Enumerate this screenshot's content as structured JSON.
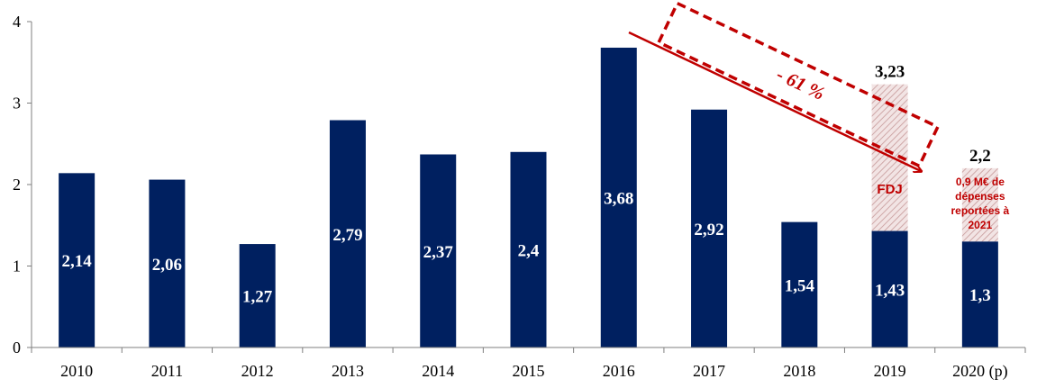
{
  "colors": {
    "bar": "#002060",
    "accent": "#c00000",
    "hatch_bg": "#f2e4e4",
    "hatch_line": "#cfa8a8",
    "axis": "#7f7f7f"
  },
  "chart_data": {
    "type": "bar",
    "title": "",
    "xlabel": "",
    "ylabel": "",
    "ylim": [
      0,
      4
    ],
    "yticks": [
      "0",
      "1",
      "2",
      "3",
      "4"
    ],
    "categories": [
      "2010",
      "2011",
      "2012",
      "2013",
      "2014",
      "2015",
      "2016",
      "2017",
      "2018",
      "2019",
      "2020 (p)"
    ],
    "series": [
      {
        "values": [
          2.14,
          2.06,
          1.27,
          2.79,
          2.37,
          2.4,
          3.68,
          2.92,
          1.54,
          1.43,
          1.3
        ],
        "labels": [
          "2,14",
          "2,06",
          "1,27",
          "2,79",
          "2,37",
          "2,4",
          "3,68",
          "2,92",
          "1,54",
          "1,43",
          "1,3"
        ]
      }
    ],
    "stacked_extra": [
      {
        "category": "2019",
        "base": 1.43,
        "total": 3.23,
        "total_label": "3,23",
        "label": "FDJ"
      },
      {
        "category": "2020 (p)",
        "base": 1.3,
        "total": 2.2,
        "total_label": "2,2",
        "note_lines": [
          "0,9 M€ de",
          "dépenses",
          "reportées à",
          "2021"
        ]
      }
    ],
    "annotations": {
      "trend_label": "- 61 %",
      "trend_from": "2016",
      "trend_to": "2019"
    },
    "grid": false
  }
}
